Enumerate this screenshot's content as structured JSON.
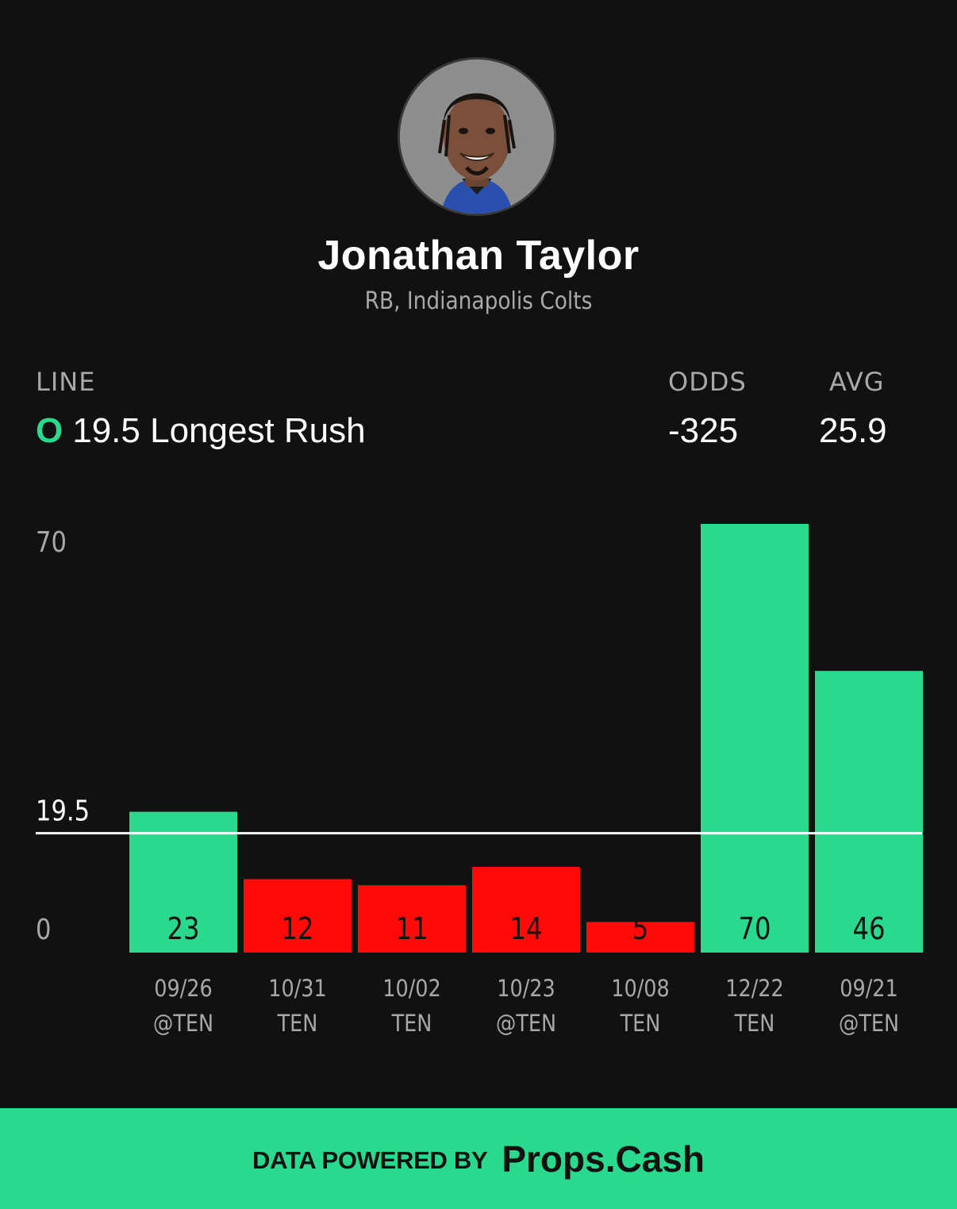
{
  "player": {
    "name": "Jonathan Taylor",
    "subtitle": "RB, Indianapolis Colts",
    "avatar_icon": "player-headshot"
  },
  "prop": {
    "line_header": "LINE",
    "odds_header": "ODDS",
    "avg_header": "AVG",
    "side_marker": "O",
    "line_text": "19.5 Longest Rush",
    "odds": "-325",
    "avg": "25.9"
  },
  "colors": {
    "background": "#111111",
    "over": "#29d98e",
    "under": "#ff0a0a",
    "line": "#ffffff",
    "muted": "#a8a8a8"
  },
  "chart_data": {
    "type": "bar",
    "categories": [
      "09/26 @TEN",
      "10/31 TEN",
      "10/02 TEN",
      "10/23 @TEN",
      "10/08 TEN",
      "12/22 TEN",
      "09/21 @TEN"
    ],
    "dates": [
      "09/26",
      "10/31",
      "10/02",
      "10/23",
      "10/08",
      "12/22",
      "09/21"
    ],
    "opponents": [
      "@TEN",
      "TEN",
      "TEN",
      "@TEN",
      "TEN",
      "TEN",
      "@TEN"
    ],
    "values": [
      23,
      12,
      11,
      14,
      5,
      70,
      46
    ],
    "value_labels": [
      "23",
      "12",
      "11",
      "14",
      "5",
      "70",
      "46"
    ],
    "line": 19.5,
    "line_label": "19.5",
    "y_ticks": [
      "0",
      "70"
    ],
    "ylim": [
      0,
      70
    ],
    "grid": false,
    "legend": "none"
  },
  "footer": {
    "label": "DATA POWERED BY",
    "brand": "Props.Cash"
  }
}
